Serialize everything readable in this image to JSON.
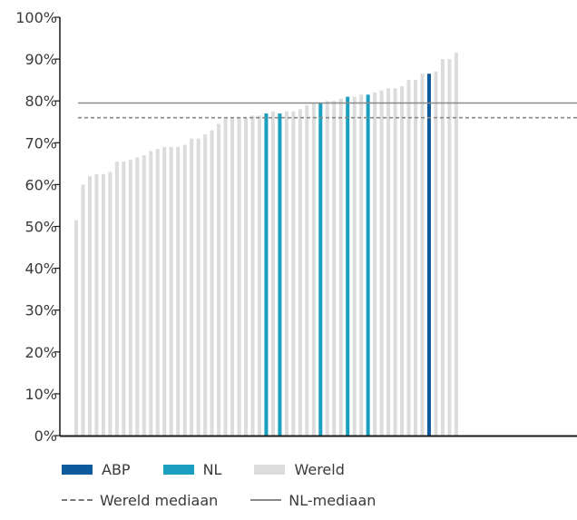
{
  "chart_data": {
    "type": "bar",
    "ylim": [
      0,
      100
    ],
    "yticks": [
      "0%",
      "10%",
      "20%",
      "30%",
      "40%",
      "50%",
      "60%",
      "70%",
      "80%",
      "90%",
      "100%"
    ],
    "series": [
      {
        "name": "ABP",
        "color": "#0e5a9e"
      },
      {
        "name": "NL",
        "color": "#1b9fc0"
      },
      {
        "name": "Wereld",
        "color": "#dcdcdc"
      }
    ],
    "values": [
      51.5,
      60,
      62,
      62.5,
      62.5,
      63,
      65.5,
      65.5,
      66,
      66.5,
      67,
      68,
      68.5,
      69,
      69,
      69,
      69.5,
      71,
      71,
      72,
      73,
      74.5,
      76,
      76,
      76,
      76,
      76.5,
      76.5,
      77,
      77.5,
      77,
      77.5,
      77.5,
      78,
      79,
      79.5,
      79.5,
      80,
      80,
      80.5,
      81,
      81,
      81.5,
      81.5,
      82,
      82.5,
      83,
      83,
      83.5,
      85,
      85,
      86.5,
      86.5,
      87,
      90,
      90,
      91.5
    ],
    "groups": [
      "Wereld",
      "Wereld",
      "Wereld",
      "Wereld",
      "Wereld",
      "Wereld",
      "Wereld",
      "Wereld",
      "Wereld",
      "Wereld",
      "Wereld",
      "Wereld",
      "Wereld",
      "Wereld",
      "Wereld",
      "Wereld",
      "Wereld",
      "Wereld",
      "Wereld",
      "Wereld",
      "Wereld",
      "Wereld",
      "Wereld",
      "Wereld",
      "Wereld",
      "Wereld",
      "Wereld",
      "Wereld",
      "NL",
      "Wereld",
      "NL",
      "Wereld",
      "Wereld",
      "Wereld",
      "Wereld",
      "Wereld",
      "NL",
      "Wereld",
      "Wereld",
      "Wereld",
      "NL",
      "Wereld",
      "Wereld",
      "NL",
      "Wereld",
      "Wereld",
      "Wereld",
      "Wereld",
      "Wereld",
      "Wereld",
      "Wereld",
      "Wereld",
      "ABP",
      "Wereld",
      "Wereld",
      "Wereld",
      "Wereld"
    ],
    "reference_lines": [
      {
        "name": "Wereld mediaan",
        "value": 76,
        "style": "dashed",
        "color": "#8a8a8a"
      },
      {
        "name": "NL-mediaan",
        "value": 79.5,
        "style": "solid",
        "color": "#8a8a8a"
      }
    ]
  },
  "legend": {
    "abp": "ABP",
    "nl": "NL",
    "wereld": "Wereld",
    "wereld_mediaan": "Wereld mediaan",
    "nl_mediaan": "NL-mediaan"
  }
}
